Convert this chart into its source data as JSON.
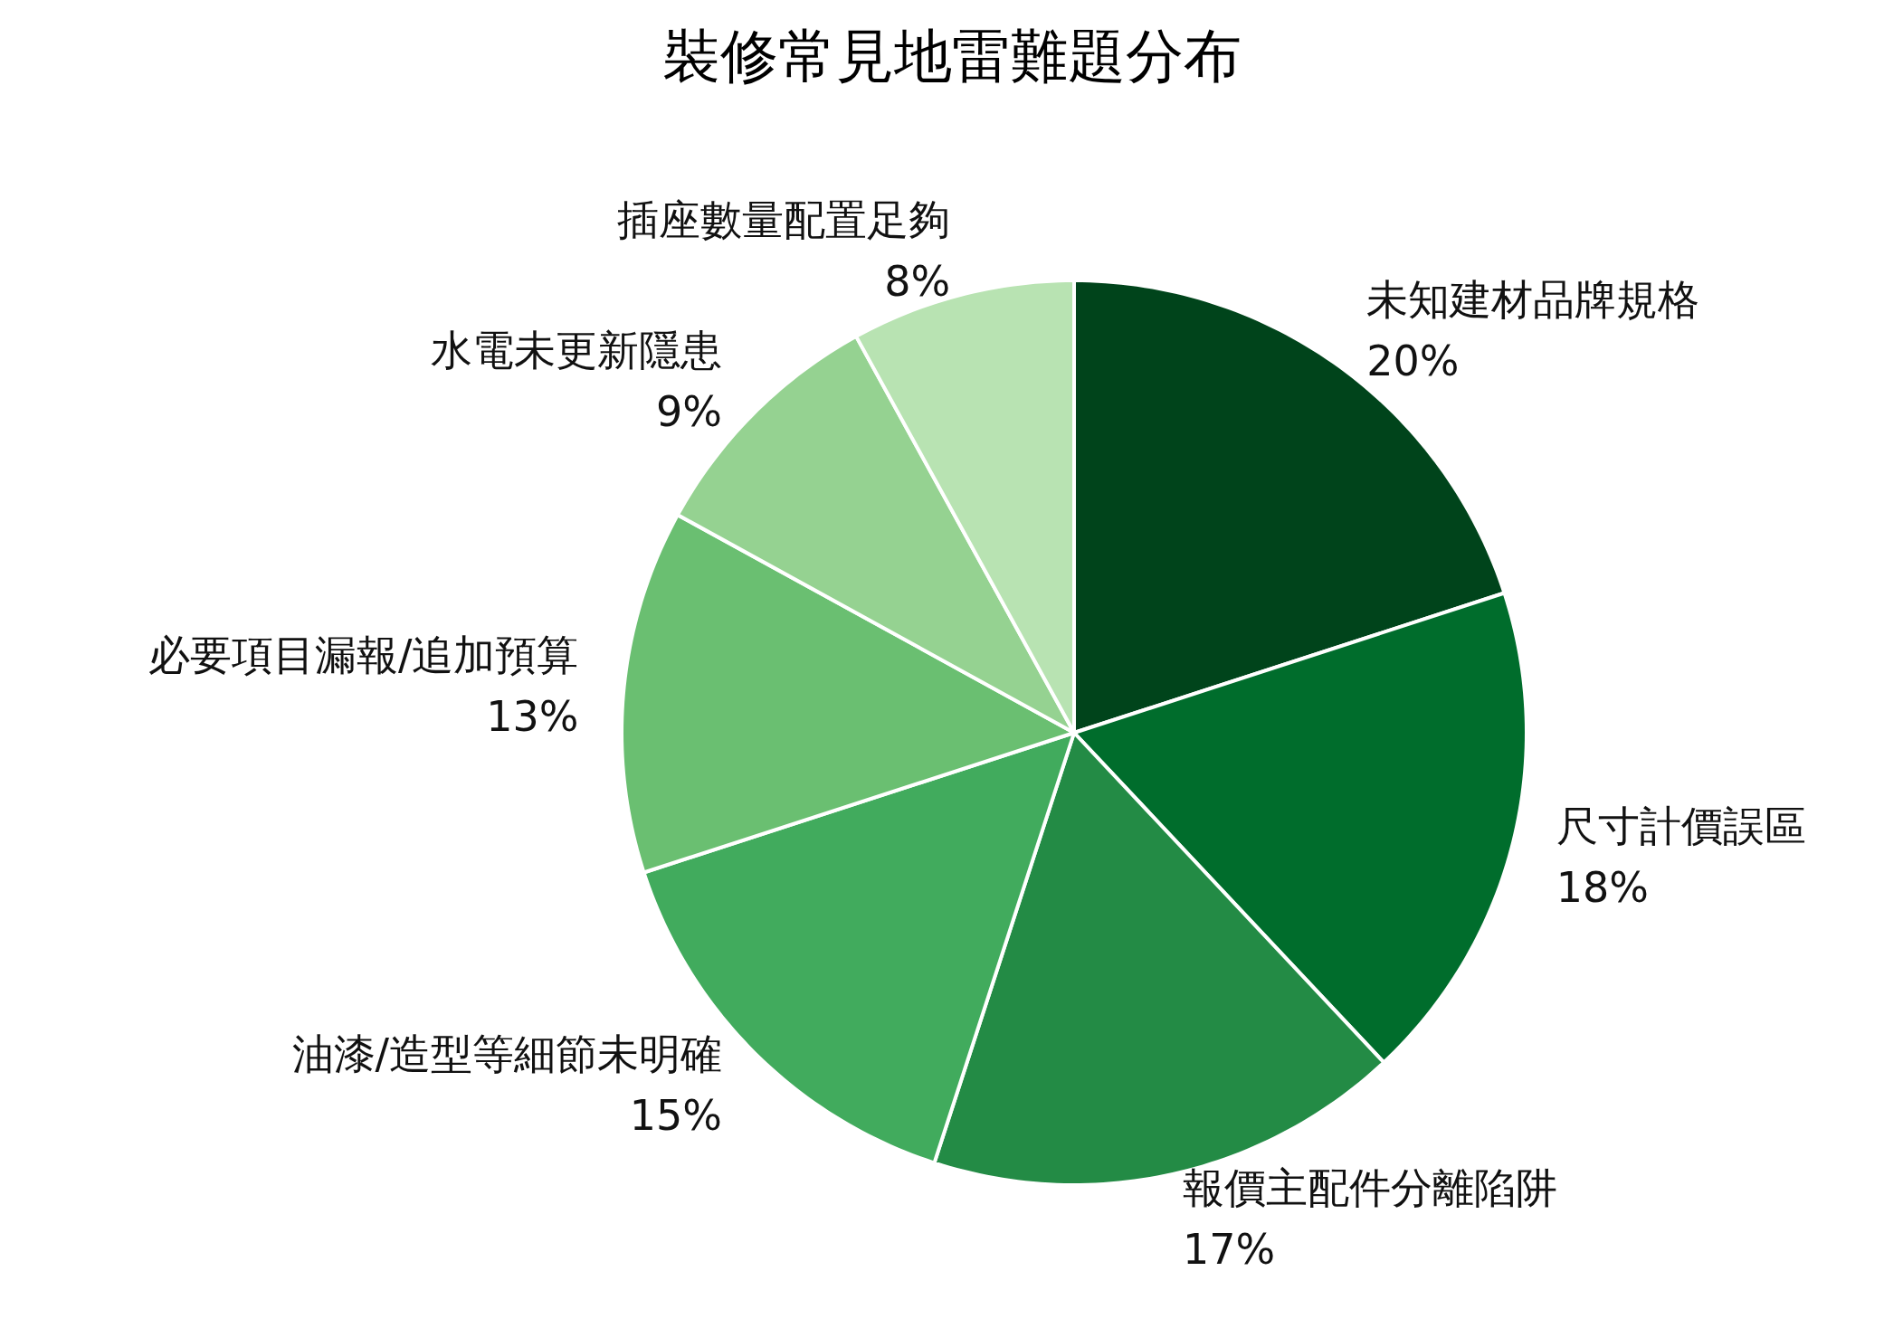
{
  "chart_data": {
    "type": "pie",
    "title": "裝修常見地雷難題分布",
    "categories": [
      "未知建材品牌規格",
      "尺寸計價誤區",
      "報價主配件分離陷阱",
      "油漆/造型等細節未明確",
      "必要項目漏報/追加預算",
      "水電未更新隱患",
      "插座數量配置足夠"
    ],
    "values": [
      20,
      18,
      17,
      15,
      13,
      9,
      8
    ],
    "value_labels": [
      "20%",
      "18%",
      "17%",
      "15%",
      "13%",
      "9%",
      "8%"
    ],
    "colors": [
      "#00441b",
      "#006d2c",
      "#238b45",
      "#41ab5d",
      "#6abf71",
      "#95d291",
      "#b8e3b2"
    ]
  }
}
